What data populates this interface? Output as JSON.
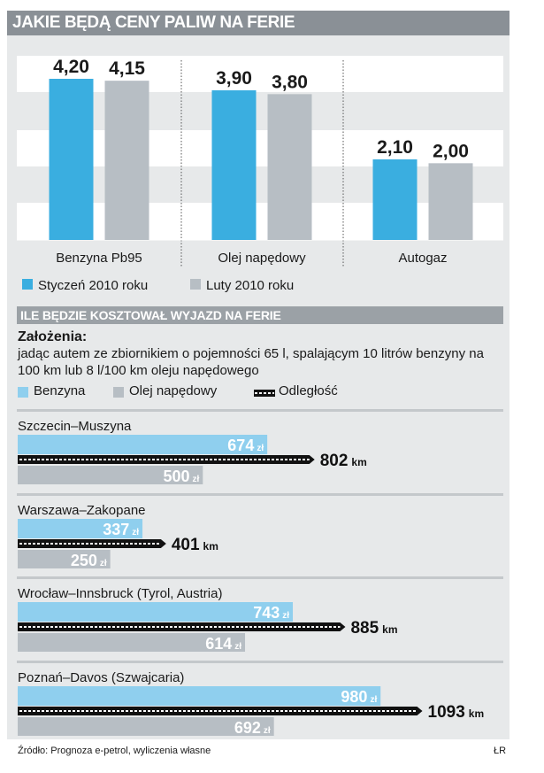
{
  "title": "JAKIE BĘDĄ CENY PALIW NA FERIE",
  "colors": {
    "blue": "#3aaee0",
    "grey": "#b7bec4",
    "lightblue": "#8fcfee",
    "panel": "#e7e9ea",
    "header": "#8a9096"
  },
  "chart_data": [
    {
      "type": "bar",
      "title": "JAKIE BĘDĄ CENY PALIW NA FERIE",
      "categories": [
        "Benzyna Pb95",
        "Olej napędowy",
        "Autogaz"
      ],
      "series": [
        {
          "name": "Styczeń 2010 roku",
          "values": [
            4.2,
            3.9,
            2.1
          ],
          "labels": [
            "4,20",
            "3,90",
            "2,10"
          ]
        },
        {
          "name": "Luty 2010 roku",
          "values": [
            4.15,
            3.8,
            2.0
          ],
          "labels": [
            "4,15",
            "3,80",
            "2,00"
          ]
        }
      ],
      "ylim": [
        0,
        4.8
      ],
      "grid": true,
      "legend": "bottom"
    },
    {
      "type": "bar",
      "title": "ILE BĘDZIE KOSZTOWAŁ WYJAZD NA FERIE",
      "orientation": "horizontal",
      "assumptions_title": "Założenia:",
      "assumptions_text": "jadąc autem ze zbiornikiem o pojemności 65 l, spalającym 10 litrów benzyny na 100 km lub 8 l/100 km oleju napędowego",
      "legend": [
        "Benzyna",
        "Olej napędowy",
        "Odległość"
      ],
      "cost_unit": "zł",
      "distance_unit": "km",
      "routes": [
        {
          "name": "Szczecin–Muszyna",
          "benzyna": 674,
          "olej": 500,
          "distance": 802
        },
        {
          "name": "Warszawa–Zakopane",
          "benzyna": 337,
          "olej": 250,
          "distance": 401
        },
        {
          "name": "Wrocław–Innsbruck (Tyrol, Austria)",
          "benzyna": 743,
          "olej": 614,
          "distance": 885
        },
        {
          "name": "Poznań–Davos (Szwajcaria)",
          "benzyna": 980,
          "olej": 692,
          "distance": 1093
        }
      ]
    }
  ],
  "source": "Źródło: Prognoza e-petrol, wyliczenia własne",
  "credit": "ŁR"
}
